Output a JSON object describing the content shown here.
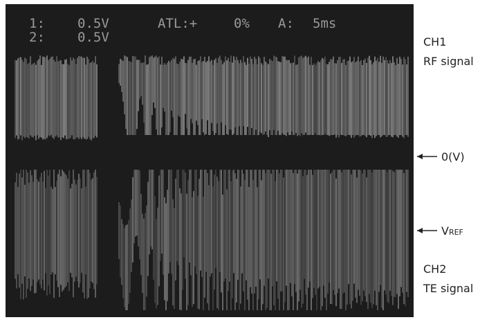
{
  "screen": {
    "ch1_label": "1:",
    "ch1_scale": "0.5V",
    "trigger_label": "ATL:+",
    "trigger_level": "0%",
    "timebase_label": "A:",
    "timebase": "5ms",
    "ch2_label": "2:",
    "ch2_scale": "0.5V"
  },
  "annotations": {
    "ch1_name": "CH1",
    "ch1_signal": "RF signal",
    "zero_level": "0(V)",
    "vref_main": "V",
    "vref_sub": "REF",
    "ch2_name": "CH2",
    "ch2_signal": "TE signal"
  }
}
